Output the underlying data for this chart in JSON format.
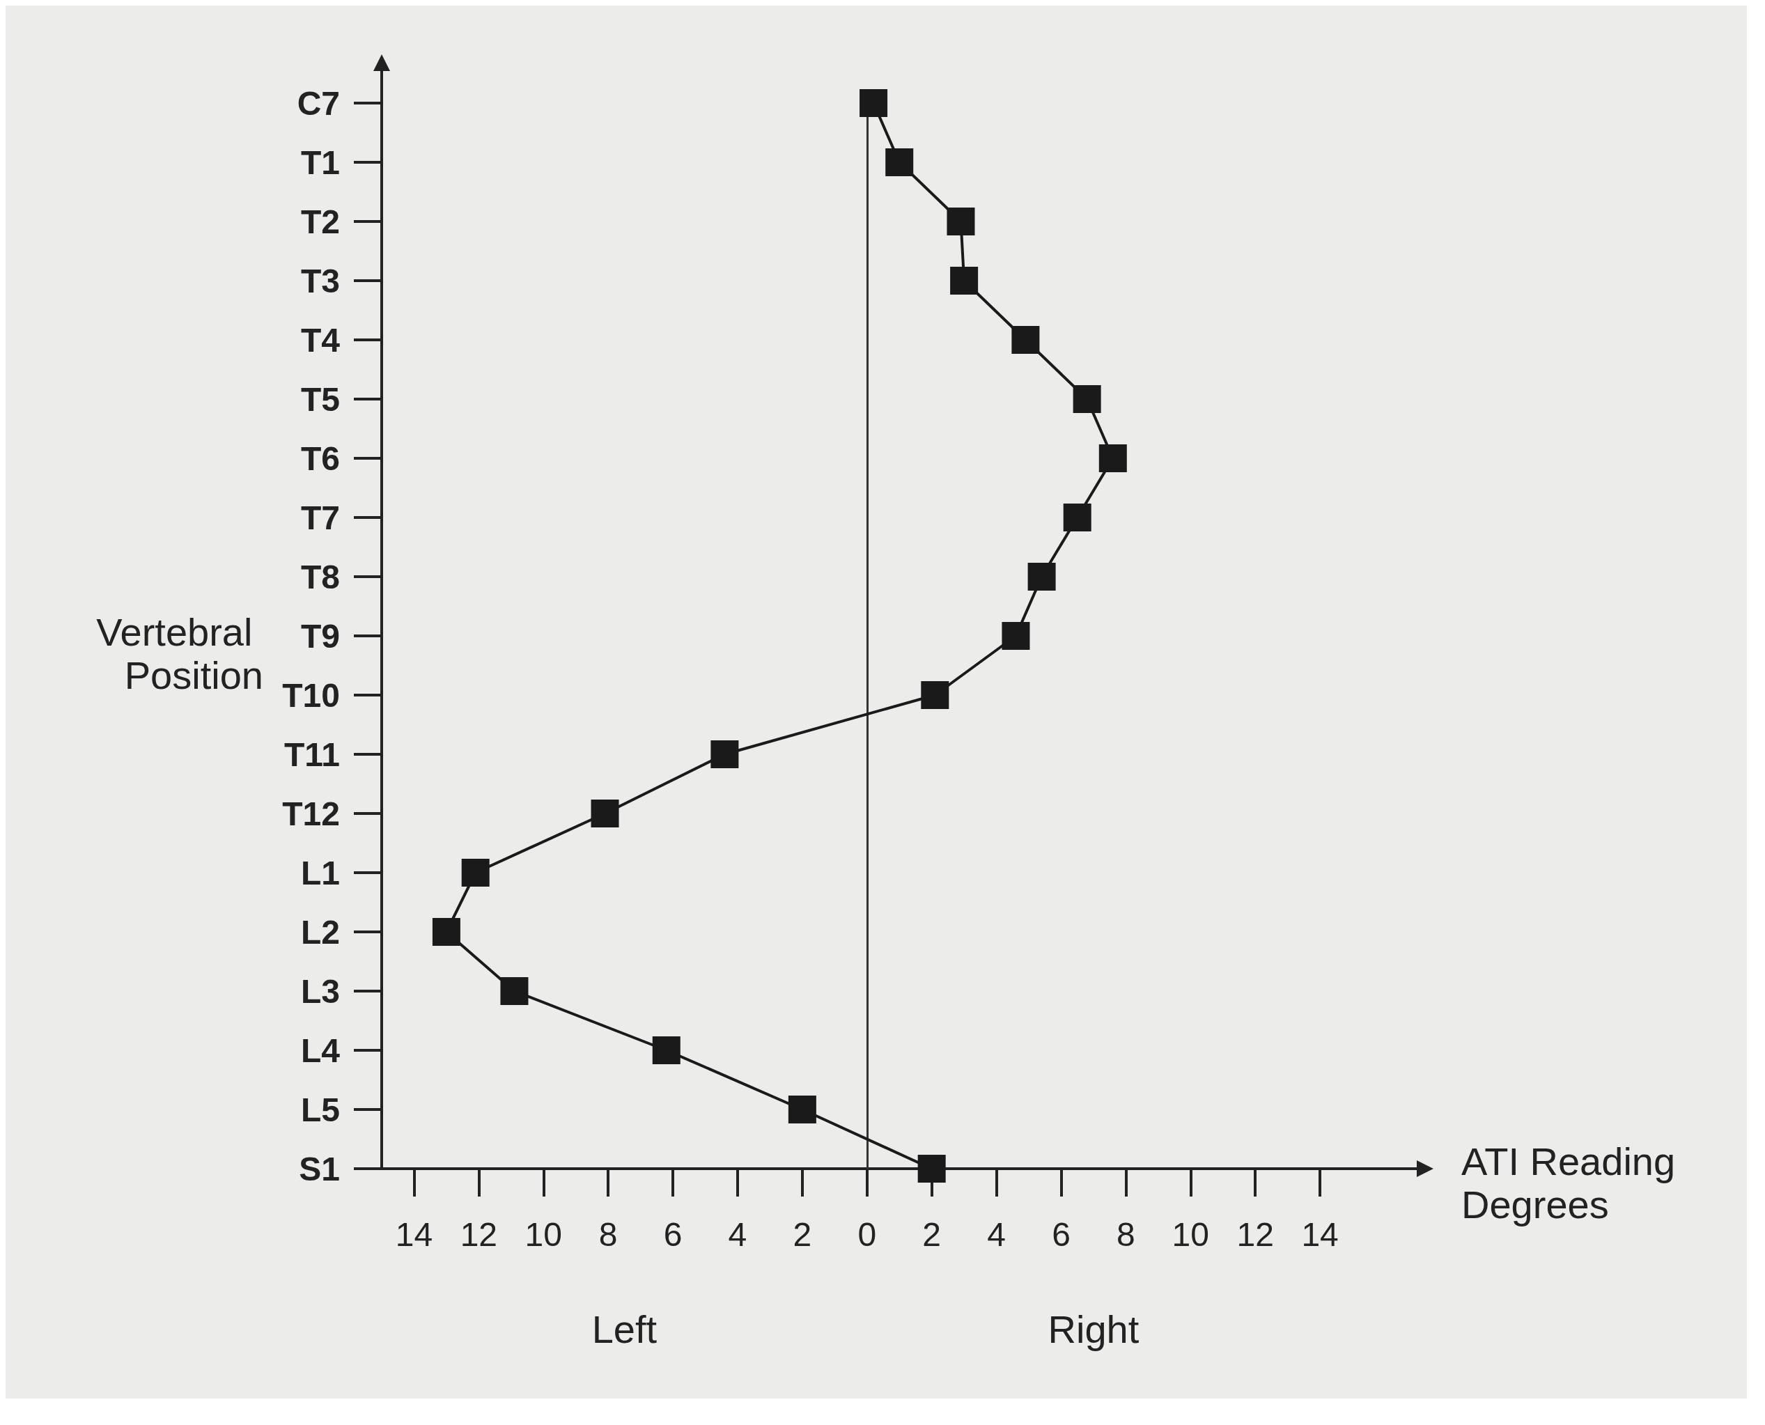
{
  "chart_data": {
    "type": "line",
    "orientation": "horizontal",
    "xlabel": "ATI Reading Degrees",
    "ylabel": "Vertebral Position",
    "categories": [
      "C7",
      "T1",
      "T2",
      "T3",
      "T4",
      "T5",
      "T6",
      "T7",
      "T8",
      "T9",
      "T10",
      "T11",
      "T12",
      "L1",
      "L2",
      "L3",
      "L4",
      "L5",
      "S1"
    ],
    "series": [
      {
        "color": "#1a1a1a",
        "values": [
          0.2,
          1,
          2.9,
          3,
          4.9,
          6.8,
          7.6,
          6.5,
          5.4,
          4.6,
          2.1,
          -4.4,
          -8.1,
          -12.1,
          -13,
          -10.9,
          -6.2,
          -2,
          2
        ]
      }
    ],
    "xlim": [
      -15,
      16
    ],
    "xticks": [
      {
        "value": -14,
        "label": "14"
      },
      {
        "value": -12,
        "label": "12"
      },
      {
        "value": -10,
        "label": "10"
      },
      {
        "value": -8,
        "label": "8"
      },
      {
        "value": -6,
        "label": "6"
      },
      {
        "value": -4,
        "label": "4"
      },
      {
        "value": -2,
        "label": "2"
      },
      0,
      2,
      4,
      6,
      8,
      10,
      12,
      14
    ],
    "ref_lines": [
      {
        "axis": "x",
        "value": 0,
        "color": "#333333"
      }
    ],
    "annotations": [
      "Left",
      "Right"
    ],
    "marker": "square",
    "line_style": "solid",
    "grid": false
  }
}
